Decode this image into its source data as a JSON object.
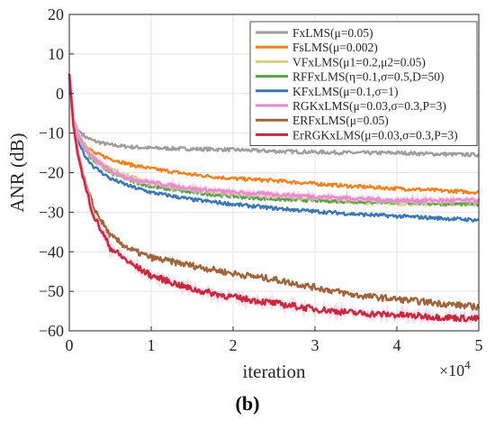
{
  "chart_data": {
    "type": "line",
    "panel_label": "(b)",
    "xlabel": "iteration",
    "ylabel": "ANR (dB)",
    "x_exponent_label": "×10",
    "x_exponent_power": "4",
    "xlim": [
      0,
      50000
    ],
    "ylim": [
      -60,
      20
    ],
    "xticks": [
      0,
      10000,
      20000,
      30000,
      40000,
      50000
    ],
    "xtick_labels": [
      "0",
      "1",
      "2",
      "3",
      "4",
      "5"
    ],
    "yticks": [
      -60,
      -50,
      -40,
      -30,
      -20,
      -10,
      0,
      10,
      20
    ],
    "ytick_labels": [
      "−60",
      "−50",
      "−40",
      "−30",
      "−20",
      "−10",
      "0",
      "10",
      "20"
    ],
    "grid": true,
    "legend_position": "top-right",
    "x": [
      0,
      500,
      1000,
      2000,
      3000,
      5000,
      7500,
      10000,
      15000,
      20000,
      25000,
      30000,
      35000,
      40000,
      45000,
      50000
    ],
    "series": [
      {
        "name": "FxLMS(μ=0.05)",
        "color": "#9e9e9e",
        "values": [
          4,
          -6,
          -9,
          -11,
          -12,
          -13,
          -13.5,
          -13.8,
          -14,
          -14.2,
          -14.6,
          -14.8,
          -15,
          -15,
          -15.3,
          -15.5
        ]
      },
      {
        "name": "FsLMS(μ=0.002)",
        "color": "#f5821f",
        "values": [
          4,
          -7,
          -10,
          -13,
          -15,
          -16.5,
          -18,
          -19,
          -20.5,
          -21.5,
          -22,
          -22.8,
          -23.5,
          -24,
          -24.5,
          -25
        ]
      },
      {
        "name": "VFxLMS(μ1=0.2,μ2=0.05)",
        "color": "#d9ce7a",
        "values": [
          4,
          -7,
          -10,
          -14,
          -16,
          -19,
          -21,
          -22.5,
          -24.5,
          -25.5,
          -26.5,
          -27,
          -27.5,
          -27.8,
          -28,
          -28
        ]
      },
      {
        "name": "RFFxLMS(η=0.1,σ=0.5,D=50)",
        "color": "#5aa04a",
        "values": [
          4,
          -7,
          -11,
          -14.5,
          -17,
          -20,
          -22,
          -23.5,
          -25,
          -26,
          -26.7,
          -27,
          -27.3,
          -27.5,
          -27.8,
          -28
        ]
      },
      {
        "name": "KFxLMS(μ=0.1,σ=1)",
        "color": "#3a78b5",
        "values": [
          4,
          -8,
          -12,
          -16,
          -18.5,
          -21.5,
          -23.5,
          -25,
          -26.8,
          -28,
          -29,
          -29.8,
          -30.5,
          -31,
          -31.5,
          -32
        ]
      },
      {
        "name": "RGKxLMS(μ=0.03,σ=0.3,P=3)",
        "color": "#ea8ac8",
        "values": [
          4,
          -7,
          -10,
          -14,
          -16.5,
          -19.5,
          -21.5,
          -22.5,
          -24,
          -25,
          -25.5,
          -26,
          -26.5,
          -27,
          -27,
          -27
        ]
      },
      {
        "name": "ERFxLMS(μ=0.05)",
        "color": "#a0643a",
        "values": [
          5,
          -7,
          -14,
          -23,
          -29,
          -36,
          -39.5,
          -41.5,
          -43.5,
          -45.5,
          -47,
          -49,
          -51,
          -52,
          -53,
          -54
        ]
      },
      {
        "name": "ErRGKxLMS(μ=0.03,σ=0.3,P=3)",
        "color": "#c8283c",
        "values": [
          5,
          -8,
          -15,
          -24,
          -31,
          -39,
          -43,
          -46,
          -49.5,
          -51.5,
          -53,
          -54.5,
          -55.5,
          -56,
          -56.5,
          -57
        ]
      }
    ]
  }
}
